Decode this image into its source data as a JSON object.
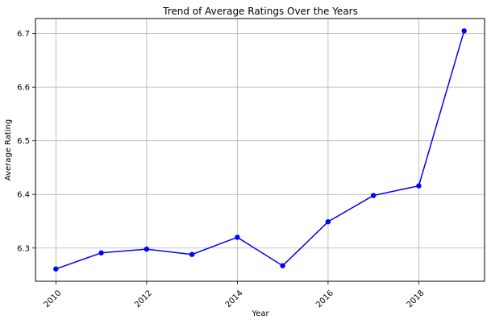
{
  "chart_data": {
    "type": "line",
    "title": "Trend of Average Ratings Over the Years",
    "xlabel": "Year",
    "ylabel": "Average Rating",
    "x": [
      2010,
      2011,
      2012,
      2013,
      2014,
      2015,
      2016,
      2017,
      2018,
      2019
    ],
    "series": [
      {
        "values": [
          6.261,
          6.291,
          6.298,
          6.288,
          6.32,
          6.267,
          6.349,
          6.398,
          6.416,
          6.705
        ],
        "color": "#0000ff",
        "marker": "circle"
      }
    ],
    "xlim": [
      2009.55,
      2019.45
    ],
    "ylim": [
      6.238,
      6.728
    ],
    "xticks": [
      "2010",
      "2012",
      "2014",
      "2016",
      "2018"
    ],
    "xtick_values": [
      2010,
      2012,
      2014,
      2016,
      2018
    ],
    "yticks": [
      "6.3",
      "6.4",
      "6.5",
      "6.6",
      "6.7"
    ],
    "ytick_values": [
      6.3,
      6.4,
      6.5,
      6.6,
      6.7
    ],
    "xtick_rotation": 45,
    "grid": true,
    "legend": "none"
  }
}
